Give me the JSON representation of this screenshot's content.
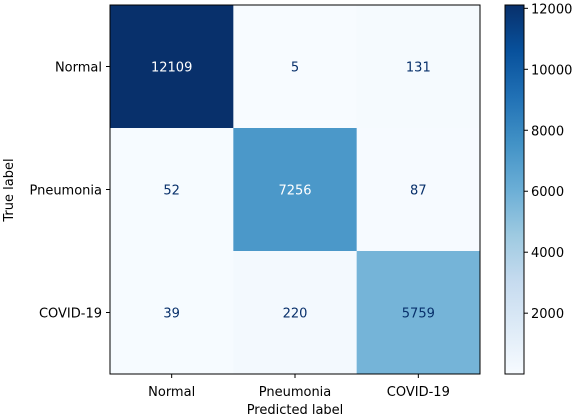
{
  "chart_data": {
    "type": "heatmap",
    "title": "",
    "xlabel": "Predicted label",
    "ylabel": "True label",
    "x_categories": [
      "Normal",
      "Pneumonia",
      "COVID-19"
    ],
    "y_categories": [
      "Normal",
      "Pneumonia",
      "COVID-19"
    ],
    "matrix": [
      [
        12109,
        5,
        131
      ],
      [
        52,
        7256,
        87
      ],
      [
        39,
        220,
        5759
      ]
    ],
    "colormap": "Blues",
    "color_range": [
      5,
      12109
    ],
    "colorbar_ticks": [
      2000,
      4000,
      6000,
      8000,
      10000,
      12000
    ],
    "colors": {
      "text_dark_cell": "#ffffff",
      "text_light_cell": "#08306b"
    }
  }
}
